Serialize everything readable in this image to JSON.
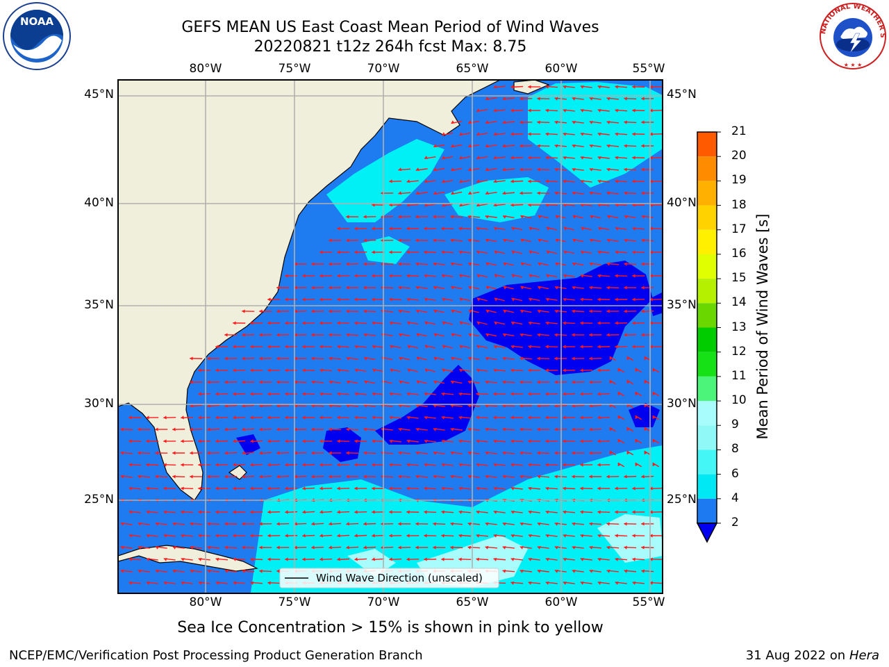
{
  "title": {
    "line1": "GEFS MEAN US East Coast Mean Period of Wind Waves",
    "line2": "20220821 t12z 264h fcst   Max: 8.75"
  },
  "logos": {
    "noaa": {
      "icon": "noaa-logo-icon",
      "text": "NOAA"
    },
    "nws": {
      "icon": "nws-logo-icon",
      "text": "NATIONAL WEATHER SERVICE"
    }
  },
  "map": {
    "longitude_labels": [
      "80°W",
      "75°W",
      "70°W",
      "65°W",
      "60°W",
      "55°W"
    ],
    "latitude_labels": [
      "45°N",
      "40°N",
      "35°N",
      "30°N",
      "25°N"
    ],
    "legend_text": "Wind Wave Direction (unscaled)",
    "land_color": "#efefdc",
    "ocean_color": "#1f7cf0",
    "arrow_color": "#ff1a1a"
  },
  "colorbar": {
    "title": "Mean Period of Wind Waves [s]",
    "labels": [
      "2",
      "4",
      "6",
      "8",
      "9",
      "10",
      "11",
      "12",
      "13",
      "14",
      "15",
      "16",
      "17",
      "18",
      "19",
      "20",
      "21"
    ],
    "colors": [
      "#1e7af0",
      "#00e8f4",
      "#44f6f6",
      "#90f8f6",
      "#a8fcfc",
      "#4cf57a",
      "#16e016",
      "#00cc00",
      "#6ad800",
      "#b4f000",
      "#e0ff00",
      "#fff000",
      "#ffd200",
      "#ffb000",
      "#ff8c00",
      "#ff5a00",
      "#ff2800",
      "#ff0000"
    ],
    "under_color": "#0000f0"
  },
  "footer": {
    "note": "Sea Ice Concentration > 15% is shown in pink to yellow",
    "left": "NCEP/EMC/Verification Post Processing Product Generation Branch",
    "right_date": "31 Aug 2022 on",
    "right_machine": "Hera"
  }
}
